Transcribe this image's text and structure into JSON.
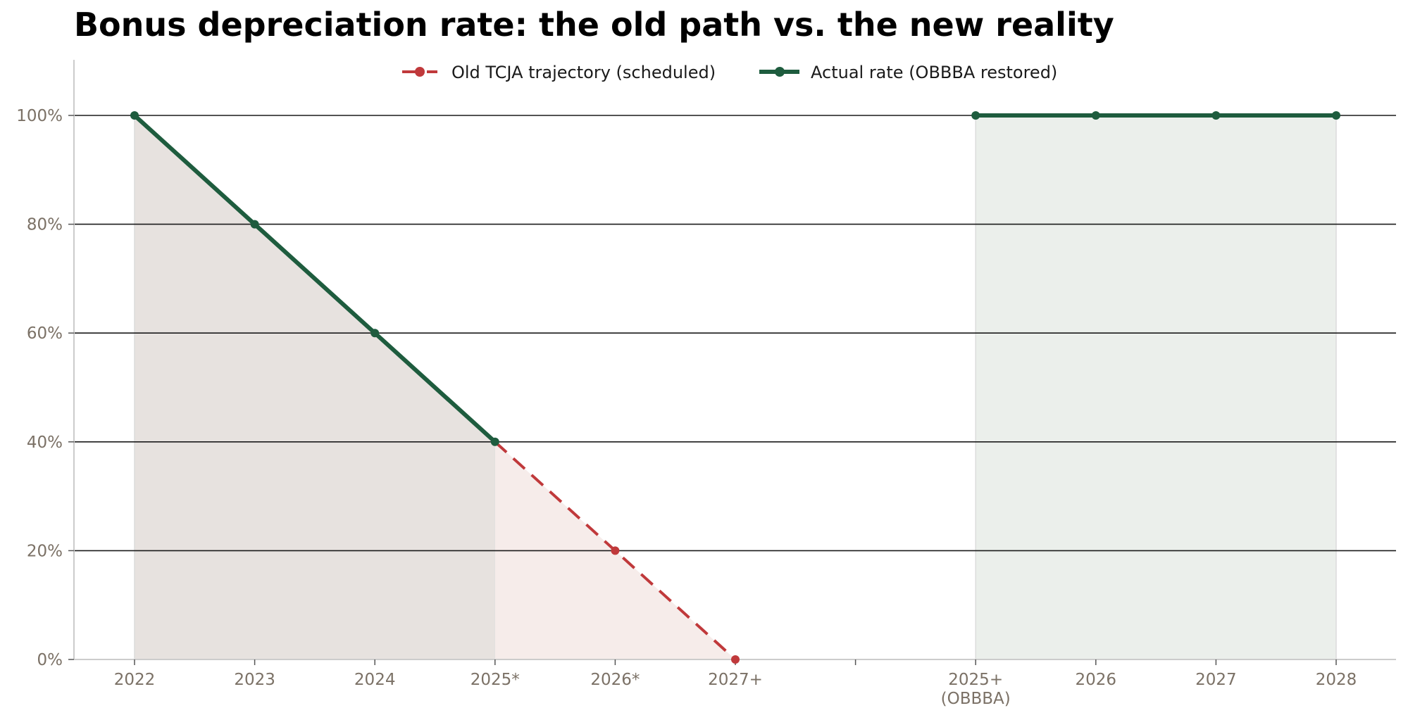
{
  "chart_data": {
    "type": "line",
    "title": "Bonus depreciation rate: the old path vs. the new reality",
    "xlabel": "",
    "ylabel": "",
    "categories": [
      "2022",
      "2023",
      "2024",
      "2025*",
      "2026*",
      "2027+",
      "",
      "2025+\n(OBBBA)",
      "2026",
      "2027",
      "2028"
    ],
    "ylim": [
      0,
      100
    ],
    "yticks": [
      0,
      20,
      40,
      60,
      80,
      100
    ],
    "ytick_format": "{v}%",
    "grid": "horizontal",
    "legend_position": "top-center",
    "series": [
      {
        "name": "Old TCJA trajectory (scheduled)",
        "style": "dashed",
        "color": "#c0393b",
        "shade": "#f6ecea",
        "points": [
          {
            "category": "2025*",
            "value": 40
          },
          {
            "category": "2026*",
            "value": 20
          },
          {
            "category": "2027+",
            "value": 0
          }
        ]
      },
      {
        "name": "Actual rate (OBBBA restored)",
        "style": "solid",
        "color": "#1e5c3e",
        "segments": [
          {
            "shade": "#e7e2df",
            "points": [
              {
                "category": "2022",
                "value": 100
              },
              {
                "category": "2023",
                "value": 80
              },
              {
                "category": "2024",
                "value": 60
              },
              {
                "category": "2025*",
                "value": 40
              }
            ]
          },
          {
            "shade": "#ebefeb",
            "points": [
              {
                "category": "2025+\n(OBBBA)",
                "value": 100
              },
              {
                "category": "2026",
                "value": 100
              },
              {
                "category": "2027",
                "value": 100
              },
              {
                "category": "2028",
                "value": 100
              }
            ]
          }
        ]
      }
    ]
  }
}
